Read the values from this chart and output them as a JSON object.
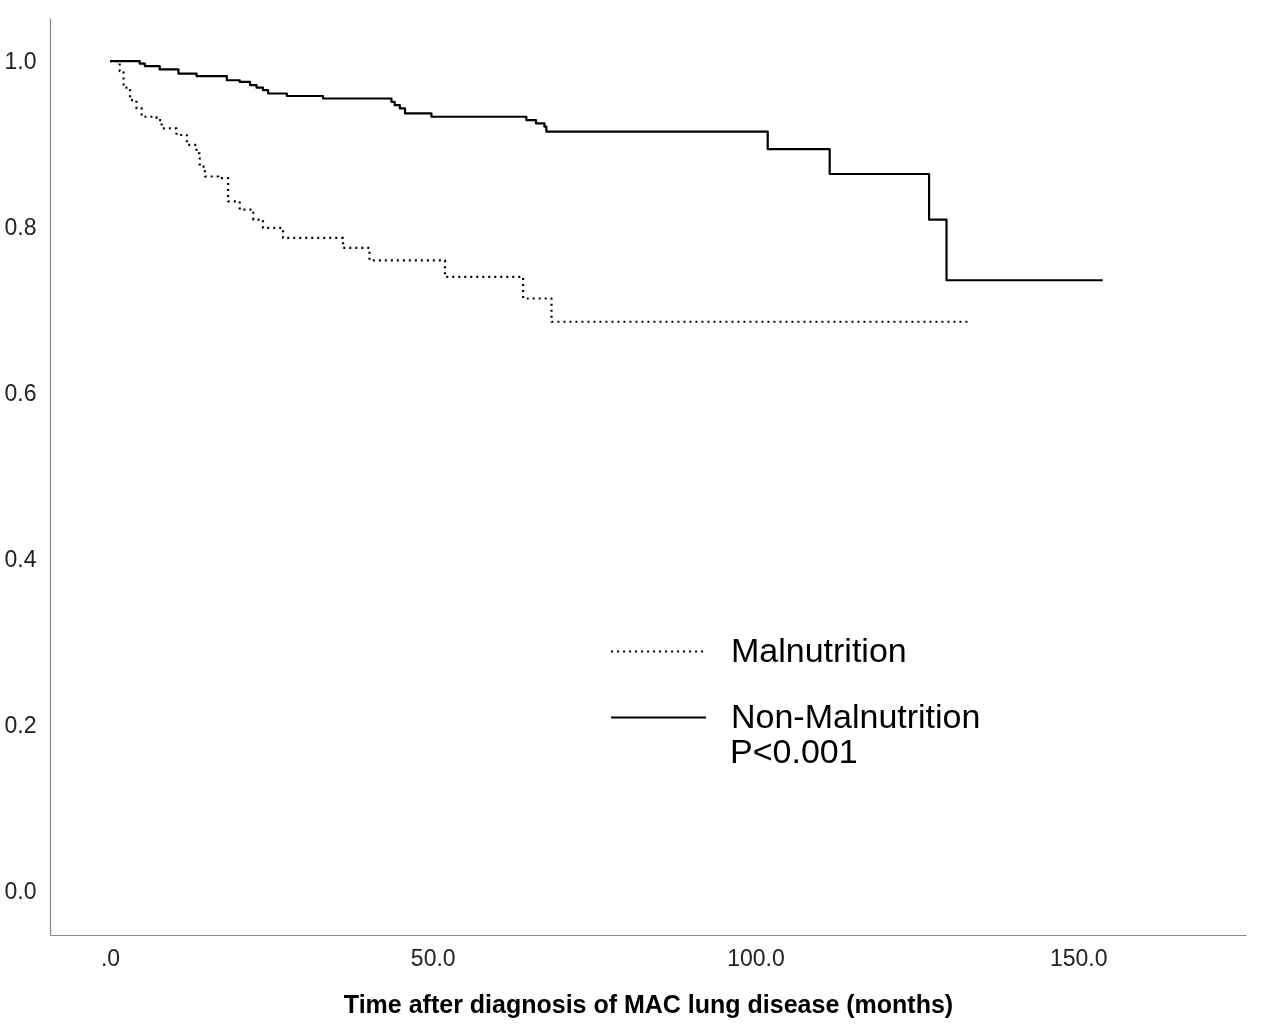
{
  "chart_data": {
    "type": "step",
    "xlabel": "Time after diagnosis of MAC lung disease (months)",
    "xlim": [
      -9.3,
      176
    ],
    "ylim": [
      -0.053,
      1.052
    ],
    "xticks": [
      {
        "value": 0,
        "label": ".0"
      },
      {
        "value": 50,
        "label": "50.0"
      },
      {
        "value": 100,
        "label": "100.0"
      },
      {
        "value": 150,
        "label": "150.0"
      }
    ],
    "yticks": [
      {
        "value": 0,
        "label": "0.0"
      },
      {
        "value": 0.2,
        "label": "0.2"
      },
      {
        "value": 0.4,
        "label": "0.4"
      },
      {
        "value": 0.6,
        "label": "0.6"
      },
      {
        "value": 0.8,
        "label": "0.8"
      },
      {
        "value": 1,
        "label": "1.0"
      }
    ],
    "grid": false,
    "legend": "bottom right",
    "annotations": [
      "P<0.001"
    ],
    "series": [
      {
        "name": "Malnutrition",
        "color": "#000000",
        "line_style": "dotted",
        "x": [
          0,
          1.5,
          2.1,
          3.1,
          4.1,
          4.9,
          7.2,
          8,
          10.3,
          11.9,
          13.4,
          13.9,
          14.7,
          16.8,
          18.3,
          20.1,
          22.2,
          23.7,
          26.8,
          36.1,
          40.2,
          51.9,
          64,
          68.4,
          133.1
        ],
        "values": [
          1,
          0.988,
          0.968,
          0.953,
          0.943,
          0.933,
          0.929,
          0.919,
          0.911,
          0.899,
          0.889,
          0.873,
          0.861,
          0.859,
          0.831,
          0.821,
          0.809,
          0.799,
          0.787,
          0.775,
          0.76,
          0.74,
          0.714,
          0.686,
          0.686
        ]
      },
      {
        "name": "Non-Malnutrition",
        "color": "#000000",
        "line_style": "solid",
        "x": [
          0,
          4.6,
          5.4,
          7.7,
          10.6,
          13.4,
          18.1,
          20.1,
          21.7,
          22.7,
          23.7,
          24.5,
          27.4,
          33,
          43.6,
          44.1,
          44.9,
          45.7,
          49.8,
          64.5,
          66,
          67.3,
          67.6,
          101.9,
          111.5,
          126.9,
          129.6,
          153.8
        ],
        "values": [
          1,
          0.997,
          0.994,
          0.99,
          0.985,
          0.982,
          0.977,
          0.975,
          0.971,
          0.968,
          0.965,
          0.961,
          0.958,
          0.955,
          0.951,
          0.947,
          0.943,
          0.937,
          0.933,
          0.929,
          0.925,
          0.921,
          0.915,
          0.894,
          0.864,
          0.809,
          0.736,
          0.736
        ]
      }
    ]
  }
}
